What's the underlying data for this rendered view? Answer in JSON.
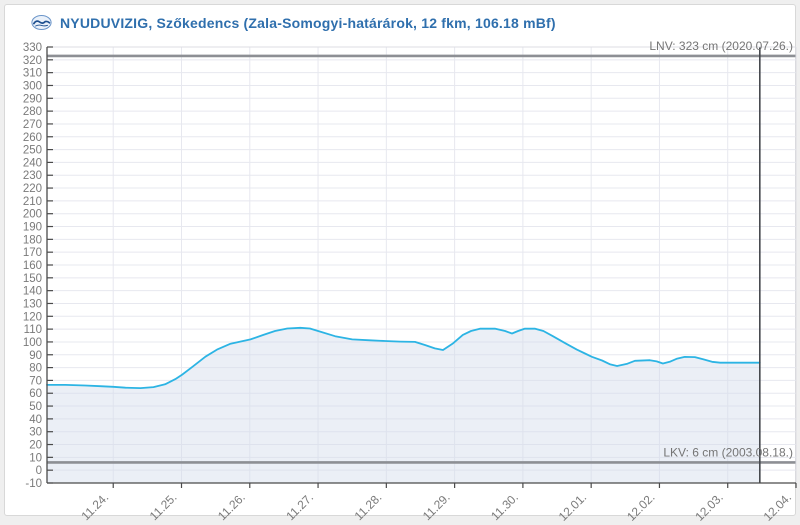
{
  "header": {
    "title": "NYUDUVIZIG, Szőkedencs (Zala-Somogyi-határárok, 12 fkm, 106.18 mBf)"
  },
  "colors": {
    "page_bg": "#efefef",
    "card_bg": "#ffffff",
    "card_border": "#d8d8d8",
    "title_text": "#2f6fad",
    "grid": "#e7e8ef",
    "axis": "#4a4a4a",
    "plot_border": "#dcdde3",
    "tick_label": "#7a7a7a",
    "series_line": "#2cb4e4",
    "series_fill": "rgba(210,219,236,0.45)",
    "extreme_line": "#8d8f94",
    "extreme_label": "#757575",
    "time_marker": "#45484d"
  },
  "chart_data": {
    "type": "area",
    "title": "NYUDUVIZIG, Szőkedencs (Zala-Somogyi-határárok, 12 fkm, 106.18 mBf)",
    "xlabel": "",
    "ylabel": "",
    "grid": true,
    "legend": "none",
    "y_min": -10,
    "y_max": 330,
    "y_tick_step": 10,
    "y_tick_labels": [
      "330",
      "320",
      "310",
      "300",
      "290",
      "280",
      "270",
      "260",
      "250",
      "240",
      "230",
      "220",
      "210",
      "200",
      "190",
      "180",
      "170",
      "160",
      "150",
      "140",
      "130",
      "120",
      "110",
      "100",
      "90",
      "80",
      "70",
      "60",
      "50",
      "40",
      "30",
      "20",
      "10",
      "0",
      "-10"
    ],
    "x_categories": [
      "11.24.",
      "11.25.",
      "11.26.",
      "11.27.",
      "11.28.",
      "11.29.",
      "11.30.",
      "12.01.",
      "12.02.",
      "12.03.",
      "12.04."
    ],
    "x_range_days": [
      -0.97,
      10.0
    ],
    "series": [
      {
        "name": "water-level-cm",
        "points": [
          [
            -0.97,
            66.5
          ],
          [
            -0.7,
            66.5
          ],
          [
            -0.41,
            66
          ],
          [
            -0.19,
            65.5
          ],
          [
            0,
            65
          ],
          [
            0.18,
            64.3
          ],
          [
            0.4,
            64
          ],
          [
            0.59,
            64.8
          ],
          [
            0.76,
            67
          ],
          [
            0.91,
            71
          ],
          [
            1.01,
            74.5
          ],
          [
            1.17,
            81
          ],
          [
            1.35,
            88.5
          ],
          [
            1.52,
            94
          ],
          [
            1.71,
            98.5
          ],
          [
            2.01,
            102
          ],
          [
            2.2,
            105.5
          ],
          [
            2.37,
            108.5
          ],
          [
            2.55,
            110.5
          ],
          [
            2.74,
            111
          ],
          [
            2.88,
            110.5
          ],
          [
            3,
            108.5
          ],
          [
            3.25,
            104.5
          ],
          [
            3.5,
            102
          ],
          [
            3.76,
            101.3
          ],
          [
            3.98,
            100.7
          ],
          [
            4.2,
            100.3
          ],
          [
            4.42,
            100
          ],
          [
            4.57,
            97.5
          ],
          [
            4.71,
            95
          ],
          [
            4.83,
            93.7
          ],
          [
            4.98,
            99
          ],
          [
            5.12,
            105.5
          ],
          [
            5.24,
            108.5
          ],
          [
            5.37,
            110.3
          ],
          [
            5.59,
            110.4
          ],
          [
            5.74,
            108.5
          ],
          [
            5.84,
            106.6
          ],
          [
            5.93,
            108.5
          ],
          [
            6.03,
            110.4
          ],
          [
            6.18,
            110.3
          ],
          [
            6.3,
            108.5
          ],
          [
            6.44,
            104.5
          ],
          [
            6.62,
            99
          ],
          [
            6.79,
            94
          ],
          [
            6.91,
            91
          ],
          [
            7.01,
            88.4
          ],
          [
            7.16,
            85.5
          ],
          [
            7.28,
            82.5
          ],
          [
            7.38,
            81.2
          ],
          [
            7.53,
            83
          ],
          [
            7.64,
            85.3
          ],
          [
            7.86,
            85.8
          ],
          [
            7.96,
            84.8
          ],
          [
            8.05,
            83.2
          ],
          [
            8.15,
            84.5
          ],
          [
            8.26,
            87
          ],
          [
            8.37,
            88.3
          ],
          [
            8.52,
            88.2
          ],
          [
            8.64,
            86.5
          ],
          [
            8.77,
            84.5
          ],
          [
            8.89,
            83.8
          ],
          [
            9.25,
            83.8
          ],
          [
            9.47,
            83.8
          ]
        ]
      }
    ],
    "annotations": {
      "lnv": {
        "value": 323,
        "label": "LNV: 323 cm (2020.07.26.)"
      },
      "lkv": {
        "value": 6,
        "label": "LKV: 6 cm (2003.08.18.)"
      },
      "current_time_marker_day": 9.47
    }
  }
}
